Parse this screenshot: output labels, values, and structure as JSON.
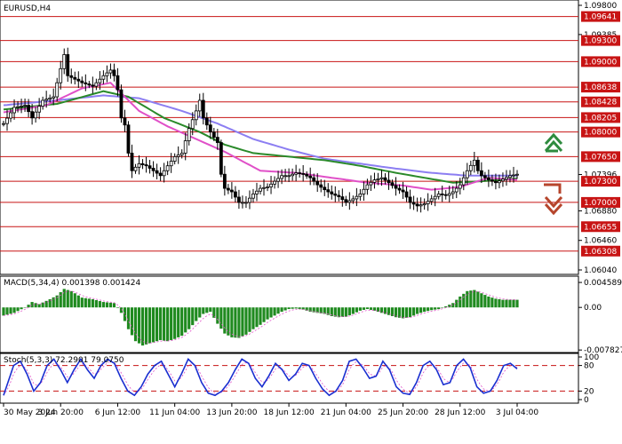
{
  "chart_data": {
    "type": "candlestick",
    "title": "EURUSD,H4",
    "price_axis": {
      "range": [
        1.0604,
        1.098
      ],
      "ticks": [
        "1.09800",
        "1.09641",
        "1.09385",
        "1.09300",
        "1.09000",
        "1.08638",
        "1.08428",
        "1.08205",
        "1.08000",
        "1.07650",
        "1.07396",
        "1.07300",
        "1.07000",
        "1.06880",
        "1.06655",
        "1.06460",
        "1.06308",
        "1.06040"
      ]
    },
    "levels": [
      {
        "value": 1.09641,
        "label": "1.09641"
      },
      {
        "value": 1.093,
        "label": "1.09300"
      },
      {
        "value": 1.09,
        "label": "1.09000"
      },
      {
        "value": 1.08638,
        "label": "1.08638"
      },
      {
        "value": 1.08428,
        "label": "1.08428"
      },
      {
        "value": 1.08205,
        "label": "1.08205"
      },
      {
        "value": 1.08,
        "label": "1.08000"
      },
      {
        "value": 1.0765,
        "label": "1.07650"
      },
      {
        "value": 1.073,
        "label": "1.07300"
      },
      {
        "value": 1.07,
        "label": "1.07000"
      },
      {
        "value": 1.06655,
        "label": "1.06655"
      },
      {
        "value": 1.06308,
        "label": "1.06308"
      }
    ],
    "x_labels": [
      "30 May 2024",
      "3 Jun 20:00",
      "6 Jun 12:00",
      "11 Jun 04:00",
      "13 Jun 20:00",
      "18 Jun 12:00",
      "21 Jun 04:00",
      "25 Jun 20:00",
      "28 Jun 12:00",
      "3 Jul 04:00"
    ],
    "close_anchors": [
      [
        0,
        1.0812
      ],
      [
        3,
        1.0835
      ],
      [
        6,
        1.0838
      ],
      [
        8,
        1.082
      ],
      [
        11,
        1.0845
      ],
      [
        14,
        1.085
      ],
      [
        16,
        1.089
      ],
      [
        17,
        1.091
      ],
      [
        18,
        1.088
      ],
      [
        20,
        1.0875
      ],
      [
        22,
        1.087
      ],
      [
        25,
        1.0865
      ],
      [
        28,
        1.088
      ],
      [
        30,
        1.0888
      ],
      [
        31,
        1.088
      ],
      [
        32,
        1.086
      ],
      [
        33,
        1.082
      ],
      [
        34,
        1.081
      ],
      [
        35,
        1.077
      ],
      [
        36,
        1.0745
      ],
      [
        38,
        1.0755
      ],
      [
        40,
        1.0752
      ],
      [
        42,
        1.0745
      ],
      [
        44,
        1.0738
      ],
      [
        46,
        1.0752
      ],
      [
        48,
        1.0765
      ],
      [
        50,
        1.077
      ],
      [
        52,
        1.0805
      ],
      [
        54,
        1.083
      ],
      [
        55,
        1.0845
      ],
      [
        56,
        1.082
      ],
      [
        58,
        1.08
      ],
      [
        60,
        1.0785
      ],
      [
        61,
        1.074
      ],
      [
        62,
        1.072
      ],
      [
        64,
        1.0715
      ],
      [
        66,
        1.07
      ],
      [
        68,
        1.07
      ],
      [
        70,
        1.0712
      ],
      [
        72,
        1.072
      ],
      [
        74,
        1.0722
      ],
      [
        76,
        1.073
      ],
      [
        78,
        1.0738
      ],
      [
        80,
        1.0738
      ],
      [
        82,
        1.0742
      ],
      [
        84,
        1.074
      ],
      [
        86,
        1.0735
      ],
      [
        88,
        1.0725
      ],
      [
        90,
        1.0718
      ],
      [
        92,
        1.0712
      ],
      [
        94,
        1.0708
      ],
      [
        96,
        1.07
      ],
      [
        98,
        1.0705
      ],
      [
        100,
        1.0712
      ],
      [
        102,
        1.0725
      ],
      [
        104,
        1.0732
      ],
      [
        106,
        1.0735
      ],
      [
        108,
        1.0728
      ],
      [
        110,
        1.072
      ],
      [
        112,
        1.0715
      ],
      [
        114,
        1.07
      ],
      [
        116,
        1.0695
      ],
      [
        118,
        1.0698
      ],
      [
        120,
        1.0705
      ],
      [
        122,
        1.0712
      ],
      [
        124,
        1.071
      ],
      [
        126,
        1.0715
      ],
      [
        128,
        1.0725
      ],
      [
        130,
        1.0745
      ],
      [
        132,
        1.076
      ],
      [
        133,
        1.0745
      ],
      [
        134,
        1.0738
      ],
      [
        136,
        1.0732
      ],
      [
        138,
        1.0728
      ],
      [
        140,
        1.0733
      ],
      [
        142,
        1.0738
      ],
      [
        144,
        1.074
      ]
    ],
    "moving_averages": [
      {
        "color": "#8c7ef2",
        "anchors": [
          [
            0,
            1.0838
          ],
          [
            15,
            1.0845
          ],
          [
            28,
            1.0852
          ],
          [
            38,
            1.0848
          ],
          [
            50,
            1.083
          ],
          [
            60,
            1.0812
          ],
          [
            70,
            1.079
          ],
          [
            80,
            1.0775
          ],
          [
            90,
            1.0762
          ],
          [
            100,
            1.0755
          ],
          [
            110,
            1.0748
          ],
          [
            120,
            1.0742
          ],
          [
            130,
            1.0738
          ],
          [
            144,
            1.0738
          ]
        ]
      },
      {
        "color": "#2a8a2a",
        "anchors": [
          [
            0,
            1.0832
          ],
          [
            15,
            1.084
          ],
          [
            28,
            1.0858
          ],
          [
            35,
            1.085
          ],
          [
            45,
            1.082
          ],
          [
            55,
            1.08
          ],
          [
            62,
            1.0782
          ],
          [
            70,
            1.077
          ],
          [
            80,
            1.0765
          ],
          [
            90,
            1.076
          ],
          [
            100,
            1.0752
          ],
          [
            110,
            1.0742
          ],
          [
            118,
            1.0735
          ],
          [
            126,
            1.0728
          ],
          [
            134,
            1.073
          ],
          [
            144,
            1.0734
          ]
        ]
      },
      {
        "color": "#e050c8",
        "anchors": [
          [
            0,
            1.0828
          ],
          [
            12,
            1.0838
          ],
          [
            22,
            1.0862
          ],
          [
            30,
            1.087
          ],
          [
            38,
            1.083
          ],
          [
            46,
            1.0808
          ],
          [
            54,
            1.079
          ],
          [
            62,
            1.0772
          ],
          [
            72,
            1.0745
          ],
          [
            82,
            1.0742
          ],
          [
            92,
            1.0735
          ],
          [
            102,
            1.0728
          ],
          [
            112,
            1.0724
          ],
          [
            120,
            1.0718
          ],
          [
            128,
            1.0722
          ],
          [
            136,
            1.0735
          ],
          [
            144,
            1.0732
          ]
        ]
      }
    ],
    "macd": {
      "label": "MACD(5,34,4) 0.001398 0.001424",
      "y_ticks": [
        "0.004589",
        "0.00",
        "-0.007827"
      ],
      "range": [
        -0.0078,
        0.0046
      ],
      "anchors": [
        [
          0,
          -0.0015
        ],
        [
          3,
          -0.001
        ],
        [
          6,
          0.0
        ],
        [
          8,
          0.001
        ],
        [
          10,
          0.0006
        ],
        [
          13,
          0.0015
        ],
        [
          15,
          0.0022
        ],
        [
          17,
          0.0034
        ],
        [
          19,
          0.003
        ],
        [
          22,
          0.0018
        ],
        [
          25,
          0.0015
        ],
        [
          28,
          0.001
        ],
        [
          31,
          0.0008
        ],
        [
          33,
          -0.001
        ],
        [
          35,
          -0.004
        ],
        [
          37,
          -0.0062
        ],
        [
          39,
          -0.007
        ],
        [
          41,
          -0.0066
        ],
        [
          44,
          -0.006
        ],
        [
          46,
          -0.0062
        ],
        [
          48,
          -0.0058
        ],
        [
          50,
          -0.0052
        ],
        [
          52,
          -0.004
        ],
        [
          54,
          -0.0025
        ],
        [
          56,
          -0.0012
        ],
        [
          58,
          -0.0008
        ],
        [
          60,
          -0.003
        ],
        [
          62,
          -0.0048
        ],
        [
          64,
          -0.0055
        ],
        [
          66,
          -0.0056
        ],
        [
          68,
          -0.005
        ],
        [
          70,
          -0.004
        ],
        [
          72,
          -0.0032
        ],
        [
          74,
          -0.0022
        ],
        [
          76,
          -0.0015
        ],
        [
          78,
          -0.0008
        ],
        [
          80,
          -0.0003
        ],
        [
          82,
          -0.0002
        ],
        [
          84,
          -0.0004
        ],
        [
          86,
          -0.0008
        ],
        [
          88,
          -0.001
        ],
        [
          90,
          -0.0012
        ],
        [
          92,
          -0.0016
        ],
        [
          94,
          -0.0018
        ],
        [
          96,
          -0.0017
        ],
        [
          98,
          -0.0012
        ],
        [
          100,
          -0.0006
        ],
        [
          102,
          -0.0003
        ],
        [
          104,
          -0.0006
        ],
        [
          106,
          -0.001
        ],
        [
          108,
          -0.0014
        ],
        [
          110,
          -0.0018
        ],
        [
          112,
          -0.002
        ],
        [
          114,
          -0.0018
        ],
        [
          116,
          -0.0012
        ],
        [
          118,
          -0.0008
        ],
        [
          120,
          -0.0005
        ],
        [
          122,
          -0.0003
        ],
        [
          124,
          0.0002
        ],
        [
          126,
          0.0008
        ],
        [
          128,
          0.002
        ],
        [
          130,
          0.003
        ],
        [
          132,
          0.0032
        ],
        [
          134,
          0.0026
        ],
        [
          136,
          0.002
        ],
        [
          138,
          0.0016
        ],
        [
          140,
          0.0014
        ],
        [
          142,
          0.0014
        ],
        [
          144,
          0.0014
        ]
      ]
    },
    "stochastic": {
      "label": "Stoch(5,3,3) 72.2901 79.0750",
      "y_ticks": [
        "100",
        "80",
        "20",
        "0"
      ],
      "levels": [
        80,
        20
      ],
      "anchors": [
        [
          0,
          10
        ],
        [
          3,
          80
        ],
        [
          5,
          90
        ],
        [
          7,
          60
        ],
        [
          9,
          20
        ],
        [
          11,
          40
        ],
        [
          13,
          80
        ],
        [
          15,
          95
        ],
        [
          17,
          70
        ],
        [
          19,
          40
        ],
        [
          21,
          70
        ],
        [
          23,
          95
        ],
        [
          25,
          70
        ],
        [
          27,
          50
        ],
        [
          29,
          80
        ],
        [
          31,
          95
        ],
        [
          33,
          85
        ],
        [
          35,
          50
        ],
        [
          37,
          20
        ],
        [
          39,
          10
        ],
        [
          41,
          30
        ],
        [
          43,
          60
        ],
        [
          45,
          80
        ],
        [
          47,
          90
        ],
        [
          49,
          60
        ],
        [
          51,
          30
        ],
        [
          53,
          60
        ],
        [
          55,
          95
        ],
        [
          57,
          80
        ],
        [
          59,
          40
        ],
        [
          61,
          15
        ],
        [
          63,
          10
        ],
        [
          65,
          20
        ],
        [
          67,
          40
        ],
        [
          69,
          70
        ],
        [
          71,
          95
        ],
        [
          73,
          85
        ],
        [
          75,
          50
        ],
        [
          77,
          30
        ],
        [
          79,
          55
        ],
        [
          81,
          85
        ],
        [
          83,
          70
        ],
        [
          85,
          45
        ],
        [
          87,
          60
        ],
        [
          89,
          85
        ],
        [
          91,
          80
        ],
        [
          93,
          50
        ],
        [
          95,
          25
        ],
        [
          97,
          10
        ],
        [
          99,
          20
        ],
        [
          101,
          45
        ],
        [
          103,
          90
        ],
        [
          105,
          95
        ],
        [
          107,
          75
        ],
        [
          109,
          50
        ],
        [
          111,
          55
        ],
        [
          113,
          90
        ],
        [
          115,
          70
        ],
        [
          117,
          30
        ],
        [
          119,
          15
        ],
        [
          121,
          12
        ],
        [
          123,
          40
        ],
        [
          125,
          80
        ],
        [
          127,
          90
        ],
        [
          129,
          70
        ],
        [
          131,
          35
        ],
        [
          133,
          40
        ],
        [
          135,
          80
        ],
        [
          137,
          95
        ],
        [
          139,
          75
        ],
        [
          141,
          30
        ],
        [
          143,
          15
        ],
        [
          145,
          20
        ],
        [
          147,
          45
        ],
        [
          149,
          80
        ],
        [
          151,
          85
        ],
        [
          153,
          72
        ]
      ]
    },
    "signals": {
      "up_color": "#2e8b3e",
      "down_color": "#b6452c"
    }
  }
}
